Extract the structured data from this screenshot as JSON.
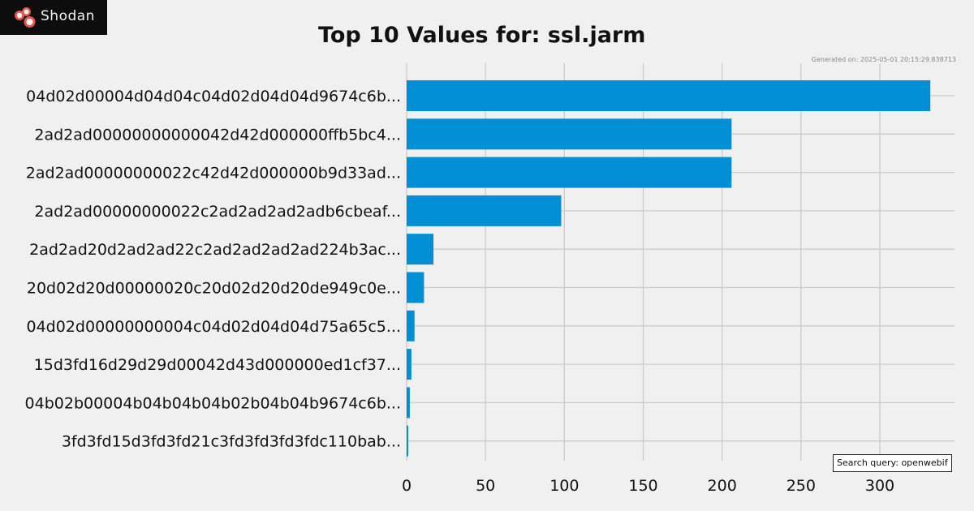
{
  "logo": {
    "text": "Shodan",
    "icon": "shodan-logo-icon"
  },
  "header": {
    "title": "Top 10 Values for: ssl.jarm",
    "generated": "Generated on: 2025-05-01 20:15:29.838713"
  },
  "footer": {
    "query": "Search query: openwebif"
  },
  "colors": {
    "bar": "#008fd5",
    "background": "#f0f0f0",
    "grid": "#cbcbcb"
  },
  "chart_data": {
    "type": "bar",
    "orientation": "horizontal",
    "title": "Top 10 Values for: ssl.jarm",
    "xlabel": "",
    "ylabel": "",
    "xlim": [
      0,
      346
    ],
    "xticks": [
      0,
      50,
      100,
      150,
      200,
      250,
      300
    ],
    "grid": true,
    "categories": [
      "04d02d00004d04d04c04d02d04d04d9674c6b...",
      "2ad2ad00000000000042d42d000000ffb5bc4...",
      "2ad2ad00000000022c42d42d000000b9d33ad...",
      "2ad2ad00000000022c2ad2ad2ad2adb6cbeaf...",
      "2ad2ad20d2ad2ad22c2ad2ad2ad2ad224b3ac...",
      "20d02d20d00000020c20d02d20d20de949c0e...",
      "04d02d00000000004c04d02d04d04d75a65c5...",
      "15d3fd16d29d29d00042d43d000000ed1cf37...",
      "04b02b00004b04b04b04b02b04b04b9674c6b...",
      "3fd3fd15d3fd3fd21c3fd3fd3fd3fdc110bab..."
    ],
    "values": [
      332,
      206,
      206,
      98,
      17,
      11,
      5,
      3,
      2,
      1
    ]
  }
}
